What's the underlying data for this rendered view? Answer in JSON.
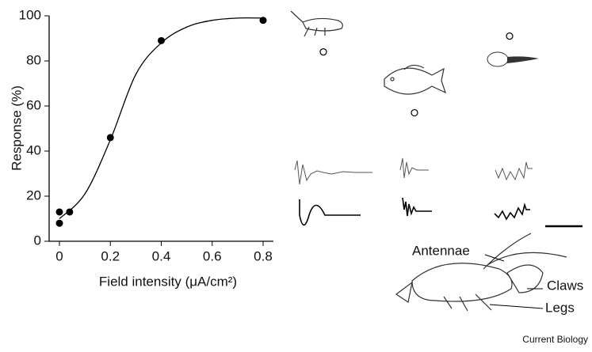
{
  "chart_data": {
    "type": "scatter",
    "xlabel": "Field intensity (μA/cm²)",
    "ylabel": "Response (%)",
    "xlim": [
      0,
      0.8
    ],
    "ylim": [
      0,
      100
    ],
    "xticks": [
      0,
      0.2,
      0.4,
      0.6,
      0.8
    ],
    "yticks": [
      0,
      20,
      40,
      60,
      80,
      100
    ],
    "color": "#000000",
    "x": [
      0,
      0,
      0.04,
      0.2,
      0.4,
      0.8
    ],
    "values": [
      8,
      13,
      13,
      46,
      89,
      98
    ],
    "fit": {
      "x": [
        0,
        0.1,
        0.2,
        0.3,
        0.4,
        0.5,
        0.6,
        0.7,
        0.8
      ],
      "values": [
        10,
        21,
        45,
        74,
        88,
        95,
        98,
        99,
        99
      ]
    },
    "species_responses": [
      84,
      57,
      91
    ],
    "annotations": [
      "Antennae",
      "Claws",
      "Legs"
    ],
    "credit": "Current Biology"
  }
}
